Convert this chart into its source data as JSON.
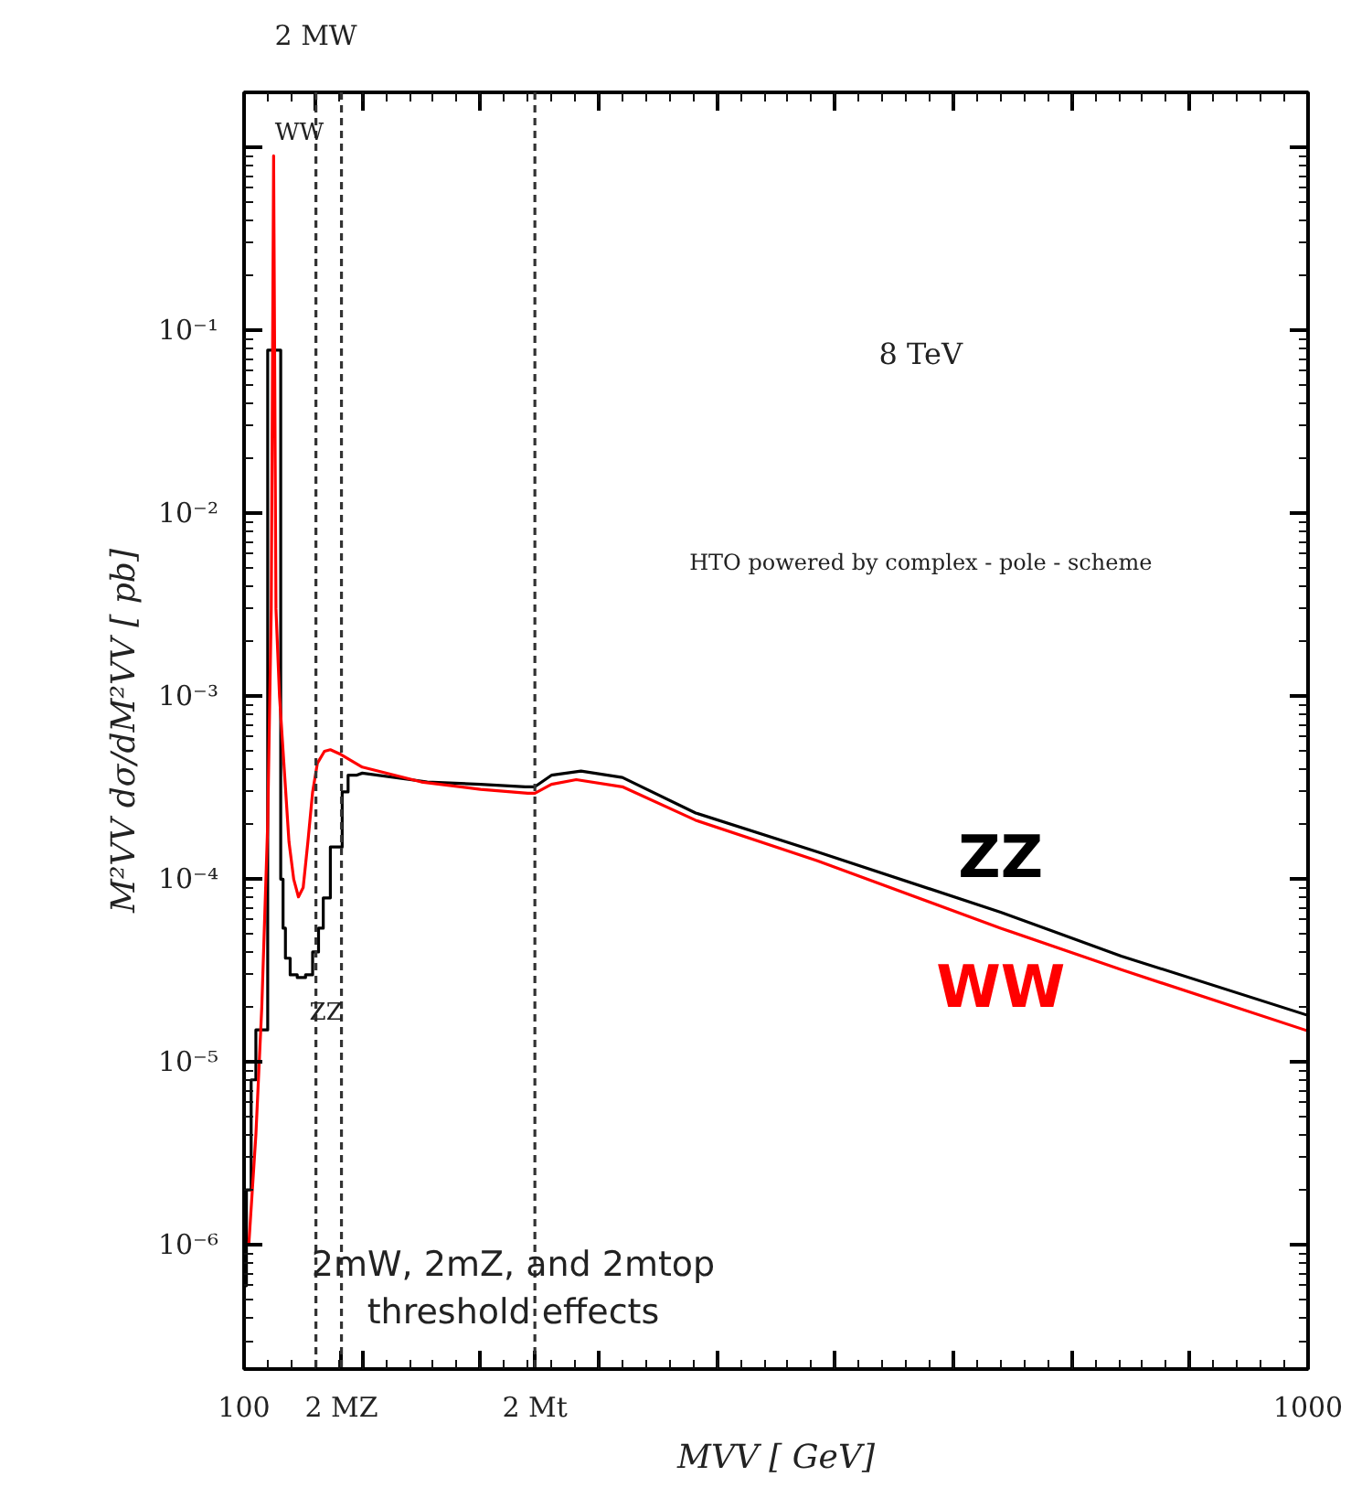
{
  "chart_data": {
    "type": "line",
    "xlabel": "MVV [ GeV]",
    "ylabel": "M²VV dσ/dM²VV [ pb]",
    "log": "y",
    "xlim": [
      100,
      1000
    ],
    "ylim": [
      2.1e-07,
      2.0
    ],
    "xticks": [
      100,
      {
        "value": 200,
        "label": null
      },
      {
        "value": 300,
        "label": null
      },
      {
        "value": 400,
        "label": null
      },
      {
        "value": 500,
        "label": null
      },
      {
        "value": 600,
        "label": null
      },
      {
        "value": 700,
        "label": null
      },
      {
        "value": 800,
        "label": null
      },
      {
        "value": 900,
        "label": null
      },
      1000
    ],
    "yticks": [
      {
        "value": 1,
        "label": null
      },
      {
        "value": 0.1,
        "label": "10⁻¹"
      },
      {
        "value": 0.01,
        "label": "10⁻²"
      },
      {
        "value": 0.001,
        "label": "10⁻³"
      },
      {
        "value": 0.0001,
        "label": "10⁻⁴"
      },
      {
        "value": 1e-05,
        "label": "10⁻⁵"
      },
      {
        "value": 1e-06,
        "label": "10⁻⁶"
      }
    ],
    "grid": false,
    "series": [
      {
        "name": "ZZ",
        "color": "#000000",
        "x": [
          100,
          102,
          102,
          106,
          106,
          110,
          110,
          120,
          120,
          131,
          131,
          133,
          133,
          135,
          135,
          139,
          139,
          145,
          145,
          152,
          152,
          158,
          158,
          163,
          163,
          167,
          167,
          173,
          173,
          183,
          183,
          188,
          188,
          195,
          200,
          255,
          300,
          338,
          346,
          360,
          385,
          420,
          482,
          585,
          740,
          842,
          1000
        ],
        "values": [
          6e-07,
          6e-07,
          2e-06,
          2e-06,
          8e-06,
          8e-06,
          1.5e-05,
          1.5e-05,
          0.078,
          0.078,
          0.0001,
          0.0001,
          5.4e-05,
          5.4e-05,
          3.7e-05,
          3.7e-05,
          3e-05,
          3e-05,
          2.9e-05,
          2.9e-05,
          3e-05,
          3e-05,
          4e-05,
          4e-05,
          5.4e-05,
          5.4e-05,
          7.9e-05,
          7.9e-05,
          0.00015,
          0.00015,
          0.0003,
          0.0003,
          0.00037,
          0.00037,
          0.00038,
          0.00034,
          0.00033,
          0.00032,
          0.00032,
          0.00037,
          0.00039,
          0.00036,
          0.00023,
          0.000141,
          6.6e-05,
          3.8e-05,
          1.8e-05
        ]
      },
      {
        "name": "WW",
        "color": "#ff0000",
        "x": [
          104,
          107,
          110,
          115,
          120,
          123,
          125,
          127,
          130,
          134,
          138,
          142,
          146,
          150,
          154,
          158,
          162,
          168,
          173,
          182,
          200,
          250,
          300,
          340,
          346,
          360,
          381,
          420,
          482,
          585,
          740,
          842,
          1000
        ],
        "values": [
          1e-06,
          2e-06,
          4e-06,
          2e-05,
          0.0002,
          0.003,
          0.9,
          0.003,
          0.001,
          0.0004,
          0.00016,
          0.0001,
          8e-05,
          9e-05,
          0.00016,
          0.0003,
          0.00043,
          0.0005,
          0.00051,
          0.00048,
          0.00041,
          0.00034,
          0.00031,
          0.000295,
          0.000295,
          0.00033,
          0.00035,
          0.00032,
          0.00021,
          0.000126,
          5.4e-05,
          3.2e-05,
          1.48e-05
        ]
      }
    ],
    "ref_lines": [
      {
        "axis": "x",
        "value": 160.8,
        "label": "2 MW",
        "color": "#333333",
        "line_style": "dashed"
      },
      {
        "axis": "x",
        "value": 182.4,
        "label": "2 MZ",
        "color": "#333333",
        "line_style": "dashed"
      },
      {
        "axis": "x",
        "value": 346,
        "label": "2 Mt",
        "color": "#333333",
        "line_style": "dashed"
      }
    ],
    "annotations": [
      "8 TeV",
      "HTO powered by complex - pole - scheme",
      "WW",
      "ZZ",
      "2mW, 2mZ, and 2mtop\nthreshold effects"
    ]
  }
}
